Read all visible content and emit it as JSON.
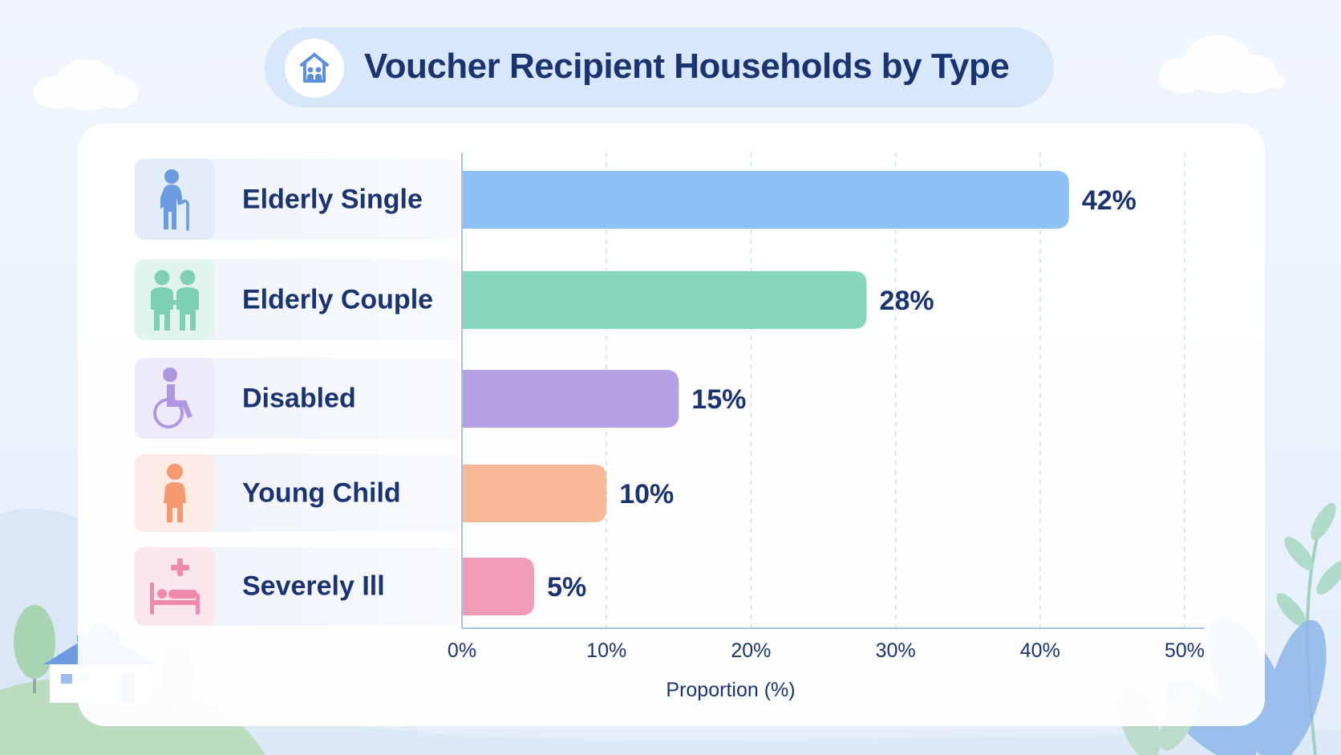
{
  "title": "Voucher Recipient Households by Type",
  "colors": {
    "text": "#1b3370",
    "bars": [
      "#8ec1f3",
      "#86d7bd",
      "#b5a0e4",
      "#f8b996",
      "#f29bb7"
    ],
    "icon_bg": [
      "#e3edf9",
      "#e2f4ee",
      "#eeeaf9",
      "#fcebe4",
      "#fce6ec"
    ]
  },
  "icons": [
    "elderly-person-cane-icon",
    "elderly-couple-icon",
    "wheelchair-icon",
    "child-icon",
    "hospital-bed-icon"
  ],
  "chart_data": {
    "type": "bar",
    "orientation": "horizontal",
    "title": "Voucher Recipient Households by Type",
    "categories": [
      "Elderly Single",
      "Elderly Couple",
      "Disabled",
      "Young Child",
      "Severely Ill"
    ],
    "values": [
      42,
      28,
      15,
      10,
      5
    ],
    "value_labels": [
      "42%",
      "28%",
      "15%",
      "10%",
      "5%"
    ],
    "xlabel": "Proportion (%)",
    "ylabel": "",
    "xlim": [
      0,
      50
    ],
    "x_ticks": [
      "0%",
      "10%",
      "20%",
      "30%",
      "40%",
      "50%"
    ],
    "grid": "vertical dashed",
    "legend": "none"
  }
}
